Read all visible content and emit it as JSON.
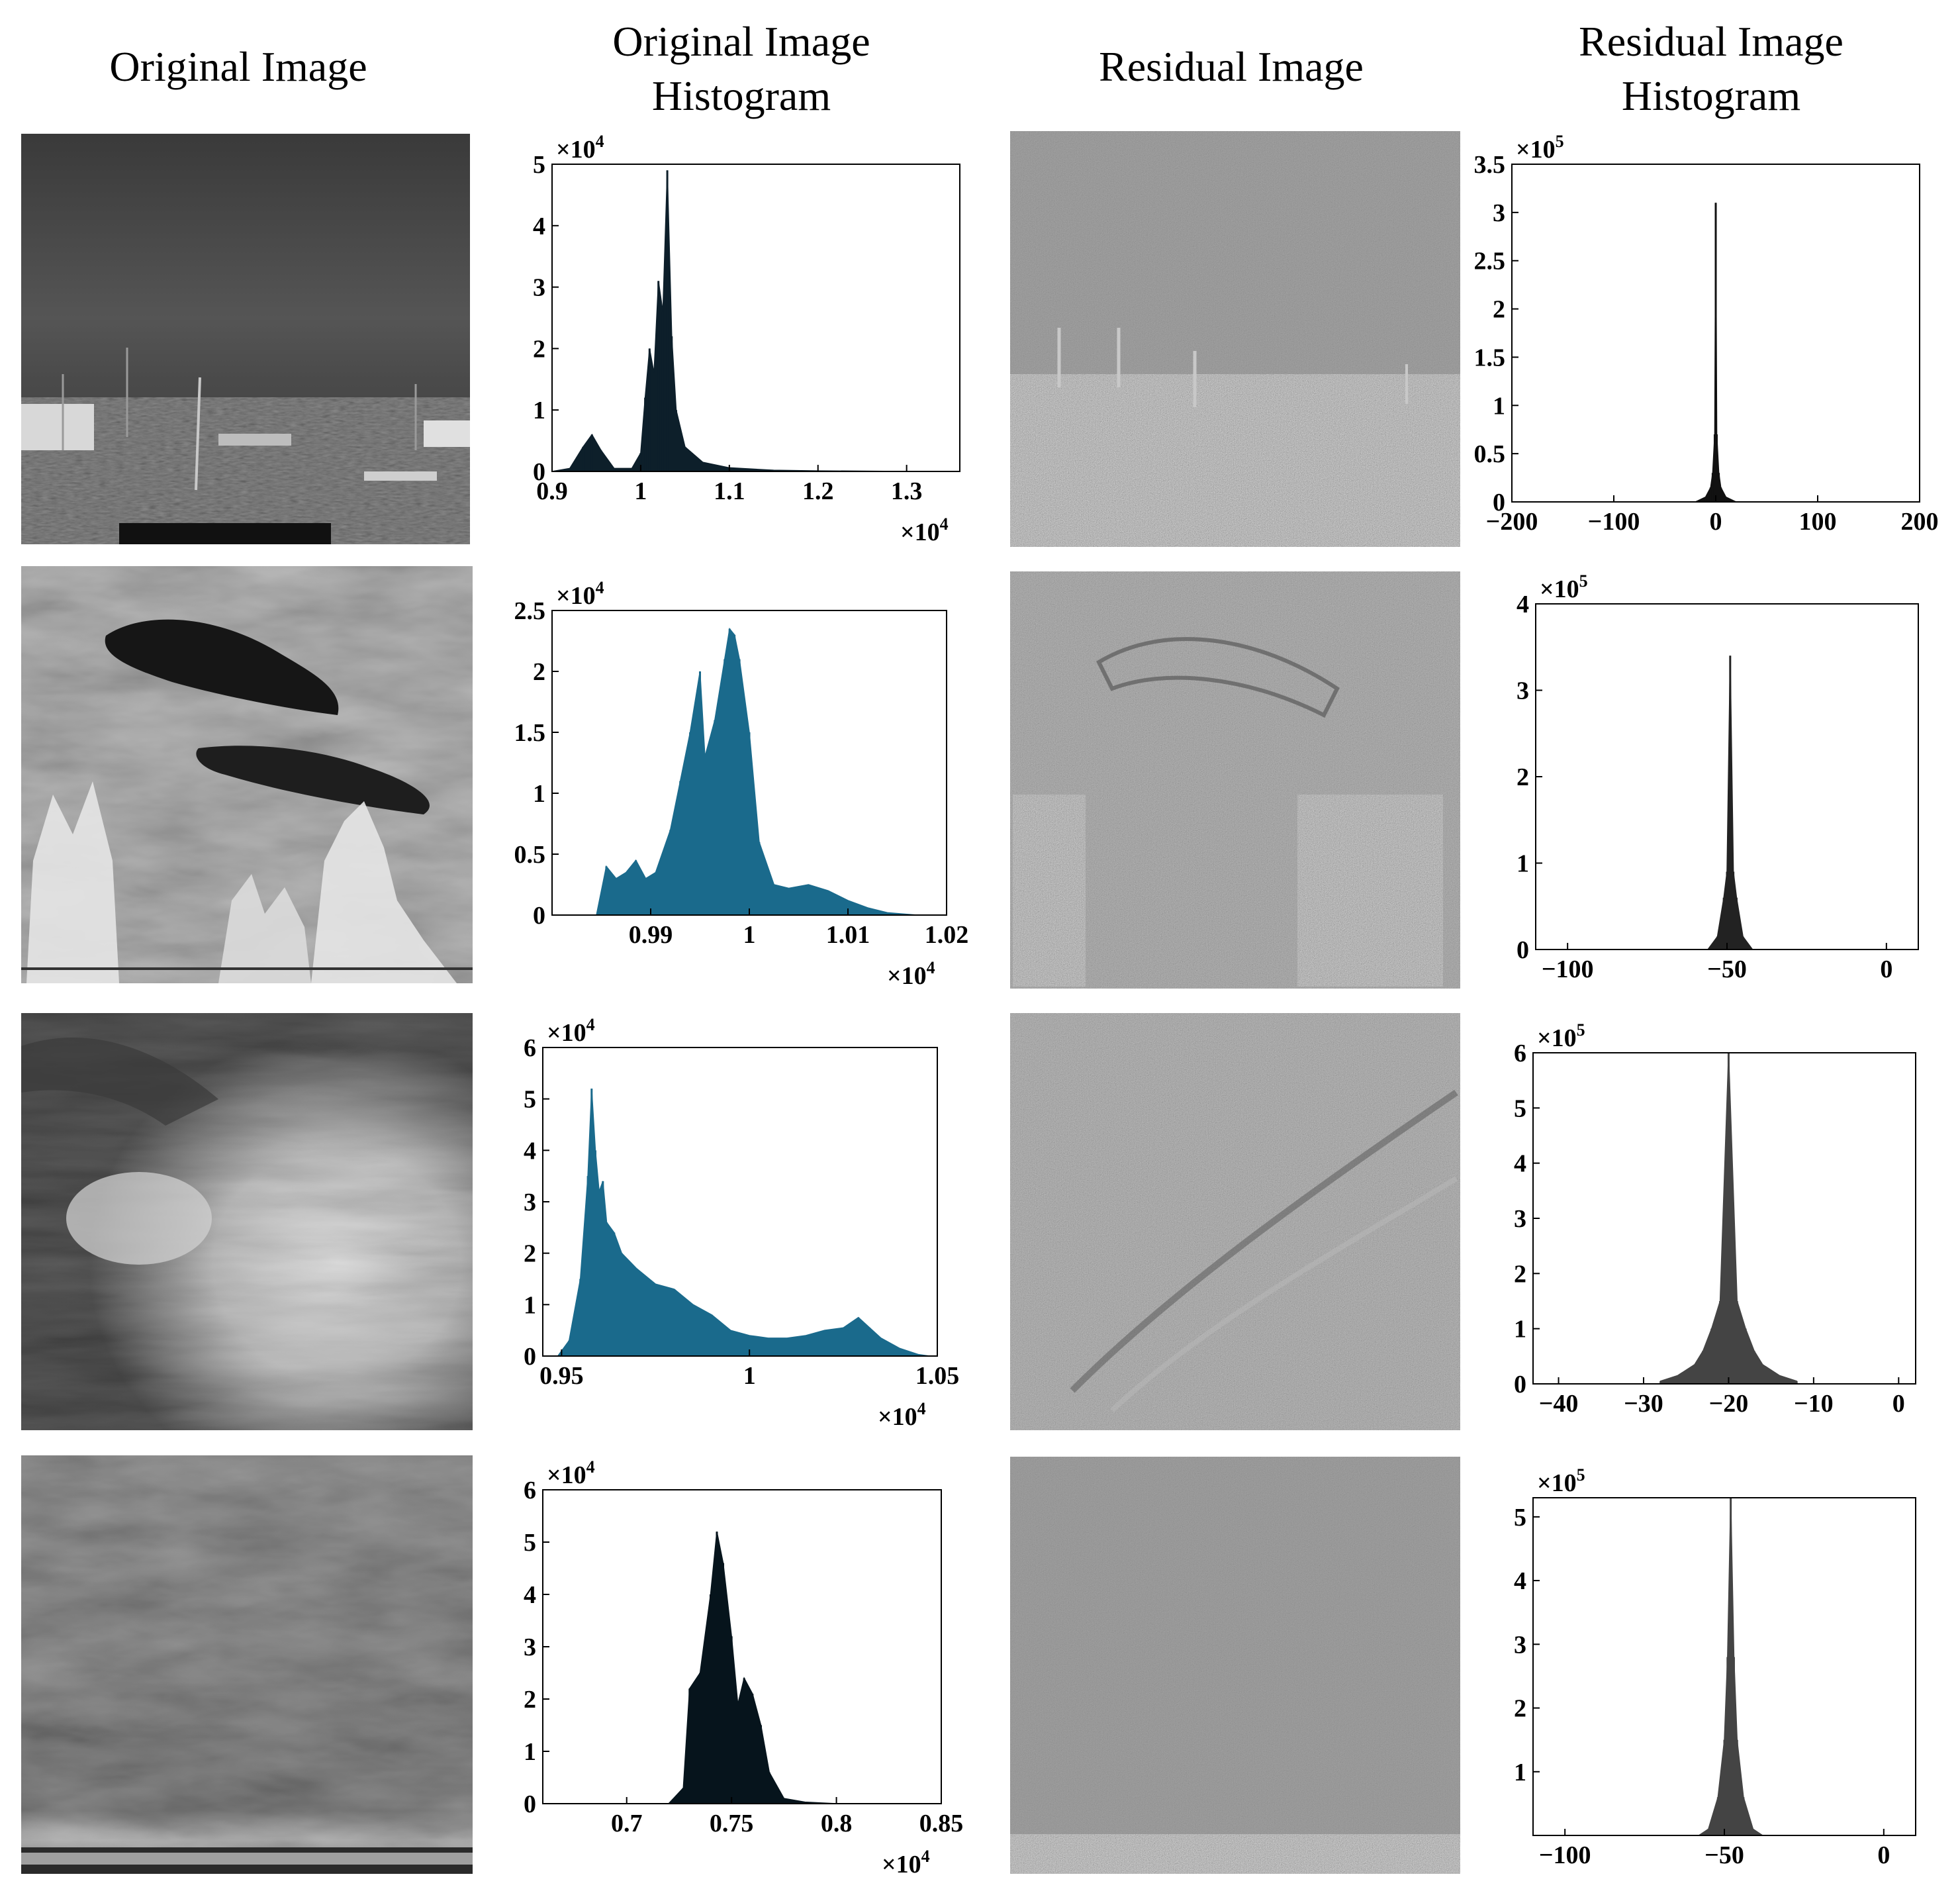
{
  "headers": {
    "col1": "Original Image",
    "col2_line1": "Original Image",
    "col2_line2": "Histogram",
    "col3": "Residual Image",
    "col4_line1": "Residual Image",
    "col4_line2": "Histogram"
  },
  "rows": [
    {
      "original_scene": "coastal harbor with buildings and poles",
      "residual_scene": "edge-enhanced harbor residual"
    },
    {
      "original_scene": "dark clouds over bright vegetation",
      "residual_scene": "edge-enhanced vegetation residual"
    },
    {
      "original_scene": "dark sky with bright clouds",
      "residual_scene": "edge-enhanced cloud residual"
    },
    {
      "original_scene": "overcast sky above sea",
      "residual_scene": "near-uniform noise residual"
    }
  ],
  "chart_data": [
    {
      "id": "orig-hist-1",
      "type": "bar",
      "fill": "#0d1f2a",
      "y_multiplier": "×10",
      "y_exponent": "4",
      "x_multiplier": "×10",
      "x_exponent": "4",
      "xlim": [
        0.9,
        1.36
      ],
      "ylim": [
        0,
        5
      ],
      "xticks": [
        "0.9",
        "1",
        "1.1",
        "1.2",
        "1.3"
      ],
      "yticks": [
        "0",
        "1",
        "2",
        "3",
        "4",
        "5"
      ],
      "x": [
        0.9,
        0.92,
        0.935,
        0.945,
        0.955,
        0.97,
        0.99,
        1.0,
        1.005,
        1.01,
        1.015,
        1.02,
        1.025,
        1.03,
        1.035,
        1.04,
        1.05,
        1.07,
        1.1,
        1.15,
        1.2,
        1.3,
        1.35
      ],
      "y": [
        0,
        0.05,
        0.4,
        0.6,
        0.35,
        0.05,
        0.05,
        0.3,
        1.2,
        2.0,
        1.6,
        3.1,
        2.6,
        4.9,
        2.2,
        1.0,
        0.4,
        0.15,
        0.06,
        0.02,
        0.01,
        0.0,
        0
      ]
    },
    {
      "id": "resid-hist-1",
      "type": "bar",
      "fill": "#111111",
      "y_multiplier": "×10",
      "y_exponent": "5",
      "xlim": [
        -200,
        200
      ],
      "ylim": [
        0,
        3.5
      ],
      "xticks": [
        "−200",
        "−100",
        "0",
        "100",
        "200"
      ],
      "yticks": [
        "0",
        "0.5",
        "1",
        "1.5",
        "2",
        "2.5",
        "3",
        "3.5"
      ],
      "x": [
        -20,
        -10,
        -5,
        -3,
        -1,
        0,
        1,
        3,
        5,
        10,
        20
      ],
      "y": [
        0,
        0.05,
        0.15,
        0.3,
        0.7,
        3.1,
        0.7,
        0.3,
        0.15,
        0.05,
        0
      ]
    },
    {
      "id": "orig-hist-2",
      "type": "bar",
      "fill": "#1a6a8c",
      "y_multiplier": "×10",
      "y_exponent": "4",
      "x_multiplier": "×10",
      "x_exponent": "4",
      "xlim": [
        0.98,
        1.02
      ],
      "ylim": [
        0,
        2.5
      ],
      "xticks": [
        "0.99",
        "1",
        "1.01",
        "1.02"
      ],
      "yticks": [
        "0",
        "0.5",
        "1",
        "1.5",
        "2",
        "2.5"
      ],
      "x": [
        0.9845,
        0.9855,
        0.9865,
        0.9875,
        0.9885,
        0.9895,
        0.9905,
        0.992,
        0.993,
        0.994,
        0.995,
        0.9955,
        0.9965,
        0.9975,
        0.998,
        0.9985,
        0.999,
        1.0,
        1.001,
        1.0025,
        1.004,
        1.006,
        1.008,
        1.01,
        1.012,
        1.014,
        1.017
      ],
      "y": [
        0,
        0.4,
        0.3,
        0.35,
        0.45,
        0.3,
        0.35,
        0.7,
        1.1,
        1.5,
        2.0,
        1.3,
        1.6,
        2.1,
        2.35,
        2.3,
        2.1,
        1.5,
        0.6,
        0.25,
        0.22,
        0.25,
        0.2,
        0.12,
        0.06,
        0.02,
        0
      ]
    },
    {
      "id": "resid-hist-2",
      "type": "bar",
      "fill": "#222222",
      "y_multiplier": "×10",
      "y_exponent": "5",
      "xlim": [
        -110,
        10
      ],
      "ylim": [
        0,
        4
      ],
      "xticks": [
        "−100",
        "−50",
        "0"
      ],
      "yticks": [
        "0",
        "1",
        "2",
        "3",
        "4"
      ],
      "x": [
        -56,
        -53,
        -51,
        -50,
        -49,
        -48,
        -47,
        -45,
        -42
      ],
      "y": [
        0,
        0.15,
        0.6,
        0.9,
        3.4,
        0.9,
        0.6,
        0.15,
        0
      ]
    },
    {
      "id": "orig-hist-3",
      "type": "bar",
      "fill": "#1a6a8c",
      "y_multiplier": "×10",
      "y_exponent": "4",
      "x_multiplier": "×10",
      "x_exponent": "4",
      "xlim": [
        0.945,
        1.05
      ],
      "ylim": [
        0,
        6
      ],
      "xticks": [
        "0.95",
        "1",
        "1.05"
      ],
      "yticks": [
        "0",
        "1",
        "2",
        "3",
        "4",
        "5",
        "6"
      ],
      "x": [
        0.949,
        0.952,
        0.955,
        0.957,
        0.958,
        0.959,
        0.96,
        0.961,
        0.962,
        0.964,
        0.966,
        0.97,
        0.975,
        0.98,
        0.985,
        0.99,
        0.995,
        1.0,
        1.005,
        1.01,
        1.015,
        1.02,
        1.025,
        1.029,
        1.032,
        1.035,
        1.04,
        1.045,
        1.048
      ],
      "y": [
        0,
        0.3,
        1.5,
        3.5,
        5.2,
        4.0,
        3.2,
        3.4,
        2.6,
        2.4,
        2.0,
        1.7,
        1.4,
        1.3,
        1.0,
        0.8,
        0.5,
        0.4,
        0.35,
        0.35,
        0.4,
        0.5,
        0.55,
        0.75,
        0.55,
        0.35,
        0.15,
        0.03,
        0
      ]
    },
    {
      "id": "resid-hist-3",
      "type": "bar",
      "fill": "#444444",
      "y_multiplier": "×10",
      "y_exponent": "5",
      "xlim": [
        -43,
        2
      ],
      "ylim": [
        0,
        6
      ],
      "xticks": [
        "−40",
        "−30",
        "−20",
        "−10",
        "0"
      ],
      "yticks": [
        "0",
        "1",
        "2",
        "3",
        "4",
        "5",
        "6"
      ],
      "x": [
        -28,
        -26,
        -24,
        -23,
        -22,
        -21,
        -20,
        -19,
        -18,
        -17,
        -16,
        -14,
        -12
      ],
      "y": [
        0.05,
        0.15,
        0.35,
        0.6,
        1.0,
        1.5,
        6.0,
        1.5,
        1.0,
        0.6,
        0.35,
        0.15,
        0.05
      ]
    },
    {
      "id": "orig-hist-4",
      "type": "bar",
      "fill": "#06141c",
      "y_multiplier": "×10",
      "y_exponent": "4",
      "x_multiplier": "×10",
      "x_exponent": "4",
      "xlim": [
        0.66,
        0.85
      ],
      "ylim": [
        0,
        6
      ],
      "xticks": [
        "0.7",
        "0.75",
        "0.8",
        "0.85"
      ],
      "yticks": [
        "0",
        "1",
        "2",
        "3",
        "4",
        "5",
        "6"
      ],
      "x": [
        0.72,
        0.727,
        0.73,
        0.735,
        0.74,
        0.743,
        0.746,
        0.75,
        0.753,
        0.756,
        0.76,
        0.764,
        0.768,
        0.775,
        0.785,
        0.8
      ],
      "y": [
        0,
        0.3,
        2.2,
        2.5,
        4.0,
        5.2,
        4.6,
        3.2,
        1.9,
        2.4,
        2.1,
        1.5,
        0.6,
        0.1,
        0.03,
        0
      ]
    },
    {
      "id": "resid-hist-4",
      "type": "bar",
      "fill": "#444444",
      "y_multiplier": "×10",
      "y_exponent": "5",
      "xlim": [
        -110,
        10
      ],
      "ylim": [
        0,
        5.3
      ],
      "xticks": [
        "−100",
        "−50",
        "0"
      ],
      "yticks": [
        "1",
        "2",
        "3",
        "4",
        "5"
      ],
      "x": [
        -58,
        -55,
        -52,
        -50,
        -49,
        -48,
        -47,
        -46,
        -44,
        -41,
        -38
      ],
      "y": [
        0,
        0.1,
        0.6,
        1.5,
        2.8,
        5.3,
        2.8,
        1.5,
        0.6,
        0.1,
        0
      ]
    }
  ]
}
